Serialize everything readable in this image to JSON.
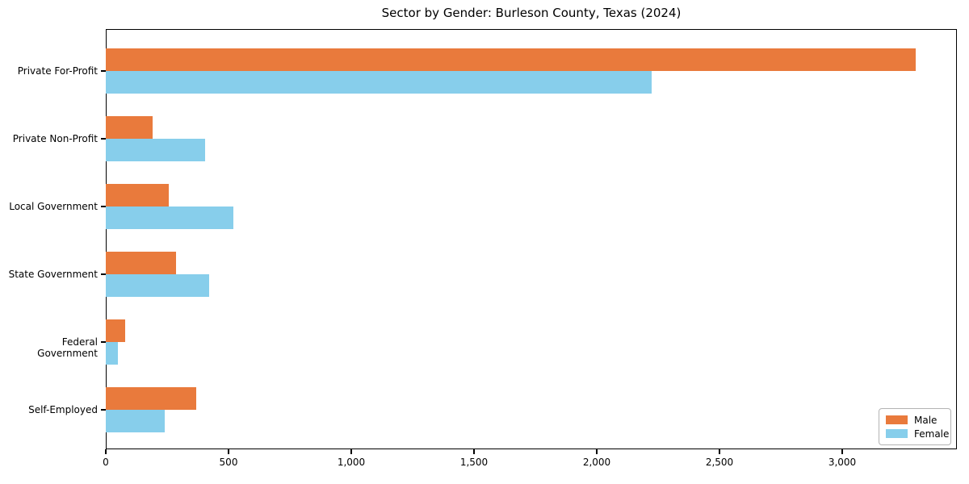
{
  "chart_data": {
    "type": "bar",
    "orientation": "horizontal",
    "title": "Sector by Gender: Burleson County, Texas (2024)",
    "categories": [
      "Private For-Profit",
      "Private Non-Profit",
      "Local Government",
      "State Government",
      "Federal Government",
      "Self-Employed"
    ],
    "series": [
      {
        "name": "Male",
        "color": "#E97A3C",
        "values": [
          3300,
          190,
          255,
          285,
          80,
          370
        ]
      },
      {
        "name": "Female",
        "color": "#87CEEB",
        "values": [
          2225,
          405,
          520,
          420,
          50,
          240
        ]
      }
    ],
    "xlabel": "",
    "ylabel": "",
    "xlim": [
      0,
      3467
    ],
    "xticks": [
      0,
      500,
      1000,
      1500,
      2000,
      2500,
      3000
    ],
    "xtick_labels": [
      "0",
      "500",
      "1,000",
      "1,500",
      "2,000",
      "2,500",
      "3,000"
    ],
    "grid": false,
    "legend": {
      "position": "lower-right"
    },
    "colors": {
      "spine": "#000000",
      "legend_border": "#b3b3b3",
      "background": "#ffffff"
    }
  }
}
